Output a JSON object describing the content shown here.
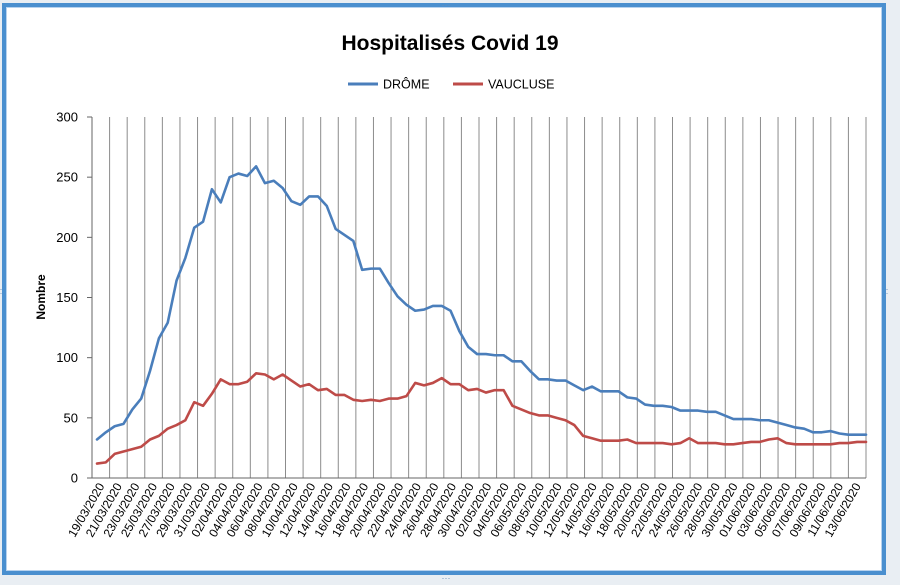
{
  "chart_data": {
    "type": "line",
    "title": "Hospitalisés Covid 19",
    "ylabel": "Nombre",
    "ylim": [
      0,
      300
    ],
    "yticks": [
      0,
      50,
      100,
      150,
      200,
      250,
      300
    ],
    "grid": "vertical",
    "legend": "top",
    "x_tick_labels": [
      "19/03/2020",
      "21/03/2020",
      "23/03/2020",
      "25/03/2020",
      "27/03/2020",
      "29/03/2020",
      "31/03/2020",
      "02/04/2020",
      "04/04/2020",
      "06/04/2020",
      "08/04/2020",
      "10/04/2020",
      "12/04/2020",
      "14/04/2020",
      "16/04/2020",
      "18/04/2020",
      "20/04/2020",
      "22/04/2020",
      "24/04/2020",
      "26/04/2020",
      "28/04/2020",
      "30/04/2020",
      "02/05/2020",
      "04/05/2020",
      "06/05/2020",
      "08/05/2020",
      "10/05/2020",
      "12/05/2020",
      "14/05/2020",
      "16/05/2020",
      "18/05/2020",
      "20/05/2020",
      "22/05/2020",
      "24/05/2020",
      "26/05/2020",
      "28/05/2020",
      "30/05/2020",
      "01/06/2020",
      "03/06/2020",
      "05/06/2020",
      "07/06/2020",
      "09/06/2020",
      "11/06/2020",
      "13/06/2020"
    ],
    "series": [
      {
        "name": "DRÔME",
        "color": "#4a7ebb",
        "values": [
          32,
          38,
          43,
          45,
          57,
          66,
          89,
          116,
          129,
          164,
          183,
          208,
          213,
          240,
          229,
          250,
          253,
          251,
          259,
          245,
          247,
          241,
          230,
          227,
          234,
          234,
          226,
          207,
          202,
          197,
          173,
          174,
          174,
          162,
          151,
          144,
          139,
          140,
          143,
          143,
          139,
          122,
          109,
          103,
          103,
          102,
          102,
          97,
          97,
          89,
          82,
          82,
          81,
          81,
          77,
          73,
          76,
          72,
          72,
          72,
          67,
          66,
          61,
          60,
          60,
          59,
          56,
          56,
          56,
          55,
          55,
          52,
          49,
          49,
          49,
          48,
          48,
          46,
          44,
          42,
          41,
          38,
          38,
          39,
          37,
          36,
          36,
          36
        ],
        "color_name": "blue"
      },
      {
        "name": "VAUCLUSE",
        "color": "#be4b48",
        "values": [
          12,
          13,
          20,
          22,
          24,
          26,
          32,
          35,
          41,
          44,
          48,
          63,
          60,
          70,
          82,
          78,
          78,
          80,
          87,
          86,
          82,
          86,
          81,
          76,
          78,
          73,
          74,
          69,
          69,
          65,
          64,
          65,
          64,
          66,
          66,
          68,
          79,
          77,
          79,
          83,
          78,
          78,
          73,
          74,
          71,
          73,
          73,
          60,
          57,
          54,
          52,
          52,
          50,
          48,
          44,
          35,
          33,
          31,
          31,
          31,
          32,
          29,
          29,
          29,
          29,
          28,
          29,
          33,
          29,
          29,
          29,
          28,
          28,
          29,
          30,
          30,
          32,
          33,
          29,
          28,
          28,
          28,
          28,
          28,
          29,
          29,
          30,
          30
        ]
      }
    ]
  }
}
